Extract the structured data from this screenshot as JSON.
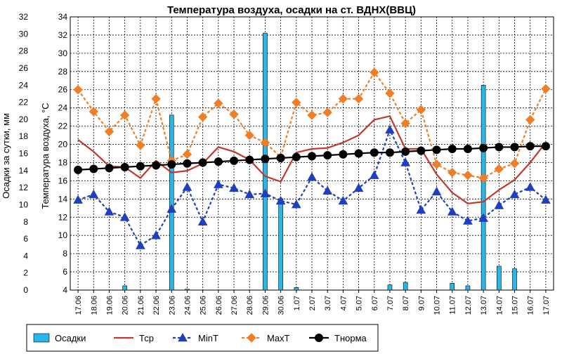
{
  "chart_data": {
    "type": "bar+line",
    "title": "Температура воздуха, осадки на ст. ВДНХ(ВВЦ)",
    "y_left_label": "Осадки за сутки, мм",
    "y_right_label": "Температура воздуха, °С",
    "y_left_range": [
      0,
      32
    ],
    "y_left_ticks": [
      "0",
      "2",
      "4",
      "6",
      "8",
      "10",
      "12",
      "14",
      "16",
      "18",
      "20",
      "22",
      "24",
      "26",
      "28",
      "30",
      "32"
    ],
    "y_temp_range": [
      4,
      34
    ],
    "y_temp_ticks": [
      "4",
      "6",
      "8",
      "10",
      "12",
      "14",
      "16",
      "18",
      "20",
      "22",
      "24",
      "26",
      "28",
      "30",
      "32",
      "34"
    ],
    "categories": [
      "17.06",
      "18.06",
      "19.06",
      "20.06",
      "21.06",
      "22.06",
      "23.06",
      "24.06",
      "25.06",
      "26.06",
      "27.06",
      "28.06",
      "29.06",
      "30.06",
      "1.07",
      "2.07",
      "3.07",
      "4.07",
      "5.07",
      "6.07",
      "7.07",
      "8.07",
      "9.07",
      "10.07",
      "11.07",
      "12.07",
      "13.07",
      "14.07",
      "15.07",
      "16.07",
      "17.07"
    ],
    "grid": true,
    "legend_position": "bottom",
    "series": [
      {
        "name": "Осадки",
        "type": "bar",
        "color": "#29b6e8",
        "values": [
          0,
          0,
          0,
          0.5,
          0,
          0,
          20.5,
          0.1,
          0,
          0,
          0,
          0,
          30.1,
          10.7,
          0.3,
          0,
          0,
          0,
          0,
          0,
          0.6,
          0.9,
          0,
          0,
          0.8,
          0.5,
          24,
          2.8,
          2.5,
          0,
          0
        ]
      },
      {
        "name": "Тср",
        "type": "line",
        "color": "#c0392b",
        "values": [
          20.5,
          19.2,
          17.6,
          17.5,
          16.3,
          18.2,
          16.9,
          17.1,
          17.9,
          19.7,
          19.2,
          18.3,
          16.5,
          15.9,
          19.1,
          19.5,
          19.6,
          20.2,
          21.0,
          22.7,
          23.1,
          19.5,
          19.5,
          16.7,
          14.7,
          13.5,
          13.7,
          15.0,
          16.1,
          18.0,
          20.2
        ]
      },
      {
        "name": "MinT",
        "type": "line",
        "color": "#1f3fbf",
        "values": [
          13.9,
          14.5,
          12.6,
          12.0,
          8.9,
          10.0,
          12.9,
          15.3,
          11.5,
          15.6,
          15.2,
          14.5,
          14.6,
          13.8,
          13.4,
          16.4,
          14.9,
          13.8,
          15.2,
          16.6,
          21.6,
          18.0,
          12.8,
          14.8,
          12.6,
          11.6,
          11.9,
          13.3,
          14.5,
          15.3,
          13.9
        ]
      },
      {
        "name": "MaxT",
        "type": "line",
        "color": "#f07e26",
        "values": [
          26.0,
          23.6,
          21.4,
          23.2,
          19.9,
          25.0,
          18.2,
          18.9,
          23.0,
          24.5,
          23.3,
          21.0,
          20.2,
          18.6,
          24.6,
          23.2,
          23.5,
          25.0,
          25.0,
          27.9,
          25.6,
          22.3,
          23.8,
          17.8,
          16.9,
          16.6,
          16.3,
          17.3,
          17.9,
          22.7,
          26.1
        ]
      },
      {
        "name": "Тнорма",
        "type": "line",
        "color": "#000000",
        "values": [
          17.2,
          17.3,
          17.4,
          17.5,
          17.6,
          17.7,
          17.8,
          17.9,
          18.0,
          18.1,
          18.2,
          18.3,
          18.4,
          18.5,
          18.6,
          18.7,
          18.8,
          18.9,
          19.0,
          19.1,
          19.1,
          19.2,
          19.3,
          19.4,
          19.5,
          19.5,
          19.6,
          19.7,
          19.7,
          19.8,
          19.8
        ]
      }
    ]
  }
}
